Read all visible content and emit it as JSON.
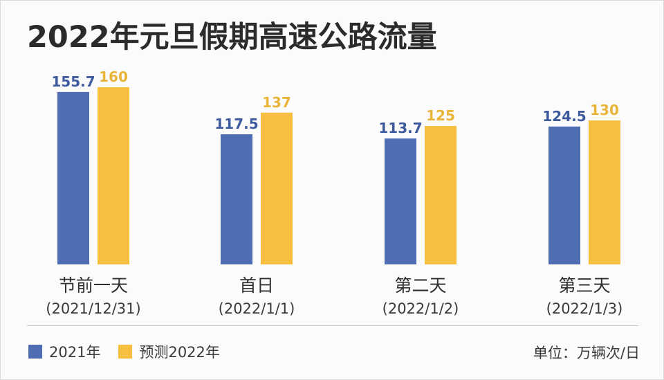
{
  "chart_data": {
    "type": "bar",
    "title": "2022年元旦假期高速公路流量",
    "categories": [
      "节前一天",
      "首日",
      "第二天",
      "第三天"
    ],
    "category_dates": [
      "(2021/12/31)",
      "(2022/1/1)",
      "(2022/1/2)",
      "(2022/1/3)"
    ],
    "series": [
      {
        "name": "2021年",
        "values": [
          155.7,
          117.5,
          113.7,
          124.5
        ],
        "color": "#4f6db3"
      },
      {
        "name": "预测2022年",
        "values": [
          160,
          137,
          125,
          130
        ],
        "color": "#f7bf3f"
      }
    ],
    "value_labels": [
      [
        "155.7",
        "117.5",
        "113.7",
        "124.5"
      ],
      [
        "160",
        "137",
        "125",
        "130"
      ]
    ],
    "unit": "单位：万辆次/日",
    "legend_position": "bottom-left",
    "grid": false
  }
}
